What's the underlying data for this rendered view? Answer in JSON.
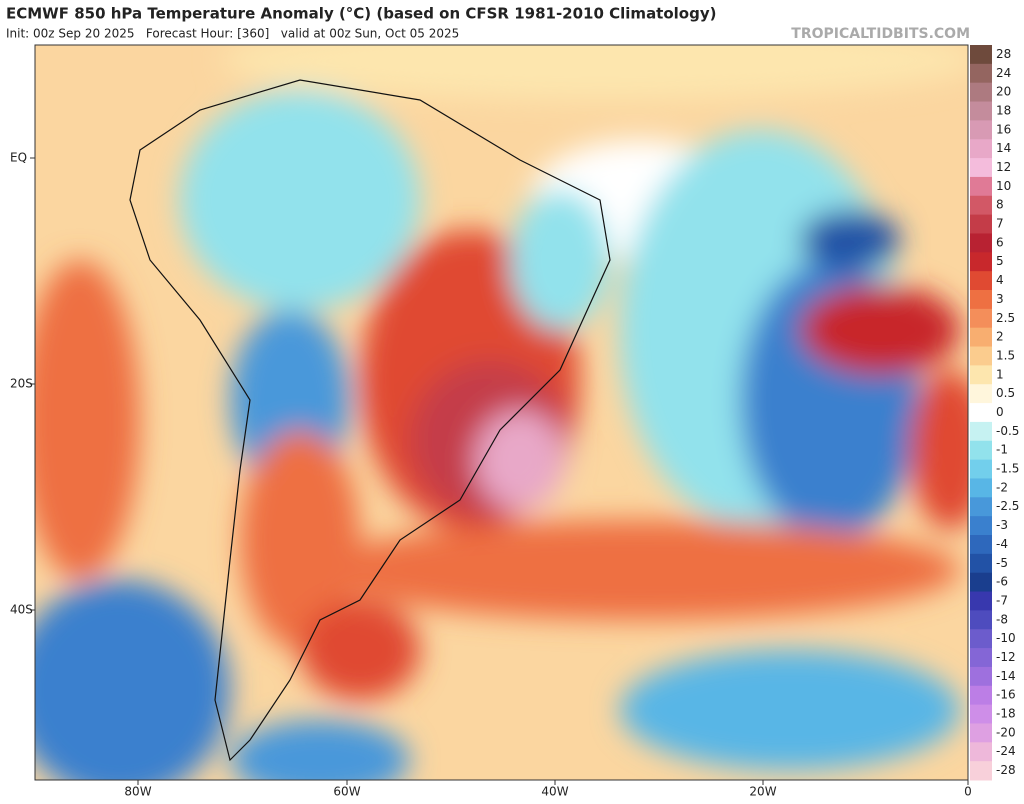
{
  "header": {
    "title": "ECMWF 850 hPa Temperature Anomaly (°C) (based on CFSR 1981-2010 Climatology)",
    "subtitle": "Init: 00z Sep 20 2025   Forecast Hour: [360]   valid at 00z Sun, Oct 05 2025",
    "credit": "TROPICALTIDBITS.COM"
  },
  "map": {
    "lat_labels": [
      "EQ",
      "20S",
      "40S"
    ],
    "lon_labels": [
      "80W",
      "60W",
      "40W",
      "20W",
      "0"
    ]
  },
  "colorbar": {
    "levels": [
      28,
      24,
      20,
      18,
      16,
      14,
      12,
      10,
      8,
      7,
      6,
      5,
      4,
      3,
      2.5,
      2,
      1.5,
      1,
      0.5,
      0,
      -0.5,
      -1,
      -1.5,
      -2,
      -2.5,
      -3,
      -4,
      -5,
      -6,
      -7,
      -8,
      -10,
      -12,
      -14,
      -16,
      -18,
      -20,
      -24,
      -28
    ],
    "colors": [
      "#6e4a3c",
      "#946560",
      "#ad7a80",
      "#c48c9c",
      "#d89ab4",
      "#e8a8c8",
      "#f4bcdc",
      "#e07a96",
      "#d25866",
      "#c43c48",
      "#b82232",
      "#c8282c",
      "#e04a32",
      "#ee7042",
      "#f48e5a",
      "#f8ae70",
      "#fbcc8e",
      "#fde6ae",
      "#fff6dc",
      "#ffffff",
      "#c6f2f2",
      "#92e2ec",
      "#72cfec",
      "#58b6e6",
      "#4898da",
      "#3a80ce",
      "#2e68bc",
      "#2252a6",
      "#1a3e8e",
      "#3838ae",
      "#4e4cbe",
      "#6c5ccc",
      "#8466d6",
      "#9e70de",
      "#bc7ee6",
      "#ce8ee8",
      "#dea0e2",
      "#eeb8da",
      "#f8d0da"
    ]
  }
}
